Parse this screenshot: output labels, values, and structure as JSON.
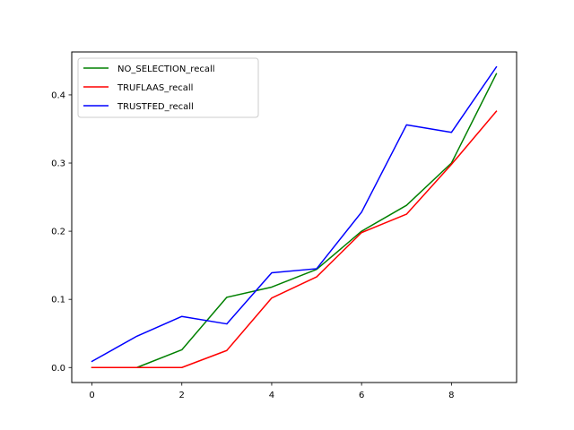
{
  "chart_data": {
    "type": "line",
    "title": "",
    "xlabel": "",
    "ylabel": "",
    "x": [
      0,
      1,
      2,
      3,
      4,
      5,
      6,
      7,
      8,
      9
    ],
    "xlim": [
      -0.45,
      9.45
    ],
    "ylim": [
      -0.022,
      0.463
    ],
    "xticks": [
      0,
      2,
      4,
      6,
      8
    ],
    "yticks": [
      0.0,
      0.1,
      0.2,
      0.3,
      0.4
    ],
    "xtick_labels": [
      "0",
      "2",
      "4",
      "6",
      "8"
    ],
    "ytick_labels": [
      "0.0",
      "0.1",
      "0.2",
      "0.3",
      "0.4"
    ],
    "grid": false,
    "legend_position": "upper-left",
    "series": [
      {
        "name": "NO_SELECTION_recall",
        "color": "#008000",
        "values": [
          0.0,
          0.0,
          0.026,
          0.103,
          0.118,
          0.144,
          0.2,
          0.238,
          0.3,
          0.431
        ]
      },
      {
        "name": "TRUFLAAS_recall",
        "color": "#ff0000",
        "values": [
          0.0,
          0.0,
          0.0,
          0.025,
          0.102,
          0.133,
          0.198,
          0.225,
          0.298,
          0.376
        ]
      },
      {
        "name": "TRUSTFED_recall",
        "color": "#0000ff",
        "values": [
          0.009,
          0.046,
          0.075,
          0.064,
          0.139,
          0.145,
          0.228,
          0.356,
          0.345,
          0.441
        ]
      }
    ]
  }
}
